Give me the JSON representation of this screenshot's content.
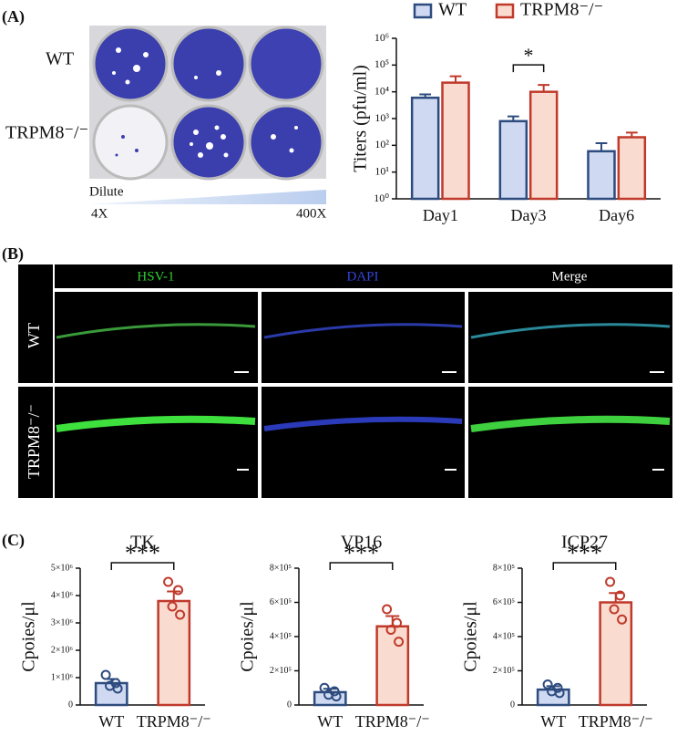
{
  "panel_labels": [
    "(A)",
    "(B)",
    "(C)"
  ],
  "panel_a": {
    "rows": [
      "WT",
      "TRPM8⁻/⁻"
    ],
    "dilute": "Dilute",
    "low": "4X",
    "high": "400X"
  },
  "panel_b": {
    "columns": [
      "HSV-1",
      "DAPI",
      "Merge"
    ],
    "rows": [
      "WT",
      "TRPM8⁻/⁻"
    ]
  },
  "chart_data": [
    {
      "type": "bar",
      "log": true,
      "ylabel": "Titers (pfu/ml)",
      "categories": [
        "Day1",
        "Day3",
        "Day6"
      ],
      "series": [
        {
          "name": "WT",
          "color": "#cfdaf2",
          "edge": "#2d4b7e",
          "values": [
            6000,
            800,
            60
          ],
          "errors": [
            2000,
            400,
            60
          ]
        },
        {
          "name": "TRPM8⁻/⁻",
          "color": "#f9dccf",
          "edge": "#c0392b",
          "values": [
            22000,
            10000,
            200
          ],
          "errors": [
            16000,
            8000,
            100
          ]
        }
      ],
      "ylim": [
        1,
        1000000
      ],
      "yticks": [
        {
          "value": 1,
          "label": "10⁰"
        },
        {
          "value": 10,
          "label": "10¹"
        },
        {
          "value": 100,
          "label": "10²"
        },
        {
          "value": 1000,
          "label": "10³"
        },
        {
          "value": 10000,
          "label": "10⁴"
        },
        {
          "value": 100000,
          "label": "10⁵"
        },
        {
          "value": 1000000,
          "label": "10⁶"
        }
      ],
      "annotations": [
        "*"
      ]
    },
    {
      "type": "bar",
      "title": "TK",
      "ylabel": "Cpoies/μl",
      "categories": [
        "WT",
        "TRPM8⁻/⁻"
      ],
      "colors": [
        "#cfdaf2",
        "#f9dccf"
      ],
      "edges": [
        "#2d4b7e",
        "#c0392b"
      ],
      "values": [
        800000,
        3800000
      ],
      "errors": [
        150000,
        350000
      ],
      "points": [
        [
          1100000,
          800000,
          700000,
          600000
        ],
        [
          4500000,
          4200000,
          3600000,
          3300000
        ]
      ],
      "ylim": [
        0,
        5000000
      ],
      "yticks": [
        0,
        {
          "value": 1000000,
          "label": "1×10⁶"
        },
        {
          "value": 2000000,
          "label": "2×10⁶"
        },
        {
          "value": 3000000,
          "label": "3×10⁶"
        },
        {
          "value": 4000000,
          "label": "4×10⁶"
        },
        {
          "value": 5000000,
          "label": "5×10⁶"
        }
      ],
      "annotations": [
        "***"
      ]
    },
    {
      "type": "bar",
      "title": "VP16",
      "ylabel": "Cpoies/μl",
      "categories": [
        "WT",
        "TRPM8⁻/⁻"
      ],
      "colors": [
        "#cfdaf2",
        "#f9dccf"
      ],
      "edges": [
        "#2d4b7e",
        "#c0392b"
      ],
      "values": [
        75000,
        460000
      ],
      "errors": [
        20000,
        60000
      ],
      "points": [
        [
          100000,
          80000,
          60000,
          50000
        ],
        [
          560000,
          480000,
          440000,
          370000
        ]
      ],
      "ylim": [
        0,
        800000
      ],
      "yticks": [
        0,
        {
          "value": 200000,
          "label": "2×10⁵"
        },
        {
          "value": 400000,
          "label": "4×10⁵"
        },
        {
          "value": 600000,
          "label": "6×10⁵"
        },
        {
          "value": 800000,
          "label": "8×10⁵"
        }
      ],
      "annotations": [
        "***"
      ]
    },
    {
      "type": "bar",
      "title": "ICP27",
      "ylabel": "Cpoies/μl",
      "categories": [
        "WT",
        "TRPM8⁻/⁻"
      ],
      "colors": [
        "#cfdaf2",
        "#f9dccf"
      ],
      "edges": [
        "#2d4b7e",
        "#c0392b"
      ],
      "values": [
        90000,
        600000
      ],
      "errors": [
        20000,
        55000
      ],
      "points": [
        [
          120000,
          100000,
          80000,
          70000
        ],
        [
          720000,
          640000,
          560000,
          500000
        ]
      ],
      "ylim": [
        0,
        800000
      ],
      "yticks": [
        0,
        {
          "value": 200000,
          "label": "2×10⁵"
        },
        {
          "value": 400000,
          "label": "4×10⁵"
        },
        {
          "value": 600000,
          "label": "6×10⁵"
        },
        {
          "value": 800000,
          "label": "8×10⁵"
        }
      ],
      "annotations": [
        "***"
      ]
    }
  ]
}
